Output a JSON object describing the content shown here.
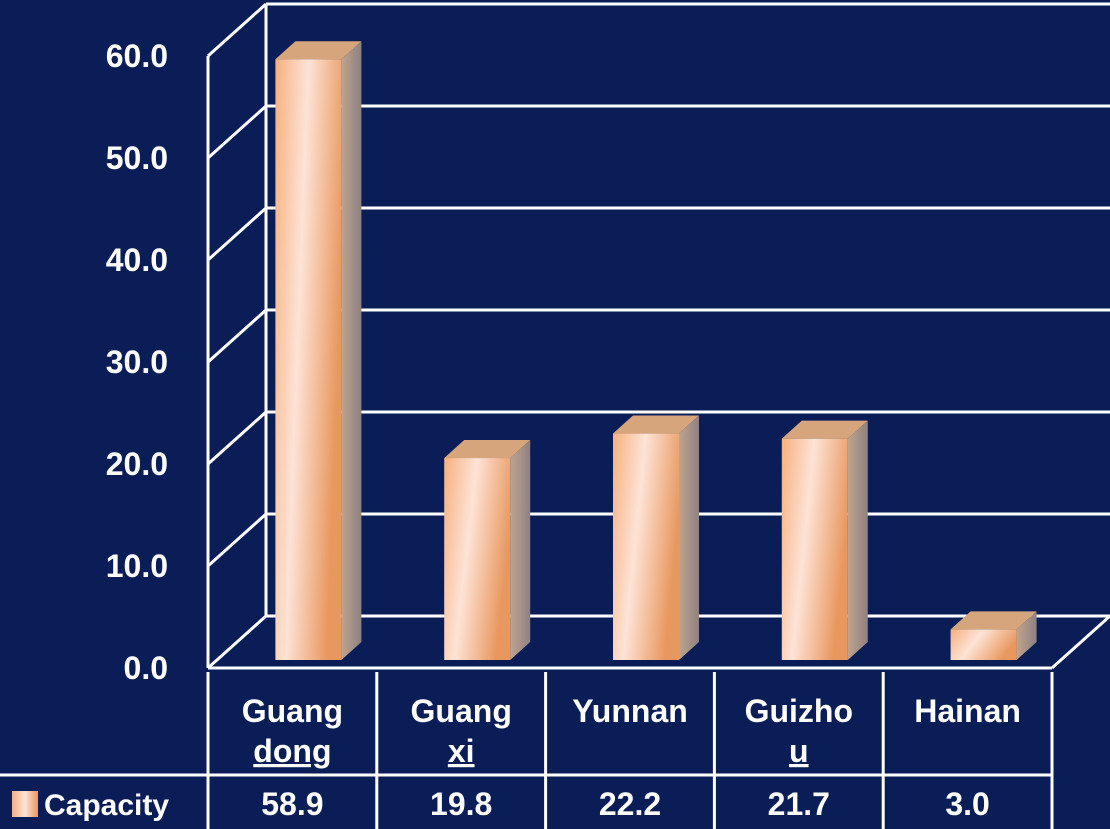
{
  "chart_data": {
    "type": "bar",
    "categories": [
      [
        "Guang",
        "dong"
      ],
      [
        "Guang",
        "xi"
      ],
      [
        "Yunnan"
      ],
      [
        "Guizho",
        "u"
      ],
      [
        "Hainan"
      ]
    ],
    "series": [
      {
        "name": "Capacity",
        "values": [
          58.9,
          19.8,
          22.2,
          21.7,
          3.0
        ]
      }
    ],
    "value_labels": [
      "58.9",
      "19.8",
      "22.2",
      "21.7",
      "3.0"
    ],
    "yticks": [
      "0.0",
      "10.0",
      "20.0",
      "30.0",
      "40.0",
      "50.0",
      "60.0"
    ],
    "ylim": [
      0,
      60
    ],
    "grid": true,
    "three_d": true,
    "data_table": true,
    "colors": {
      "background": "#0b1d57",
      "grid": "#ffffff",
      "bar_light": "#fde3d6",
      "bar_mid": "#f6b07f",
      "bar_dark": "#e8985f",
      "bar_side": "#a7968a",
      "bar_top": "#d6a57c"
    }
  }
}
